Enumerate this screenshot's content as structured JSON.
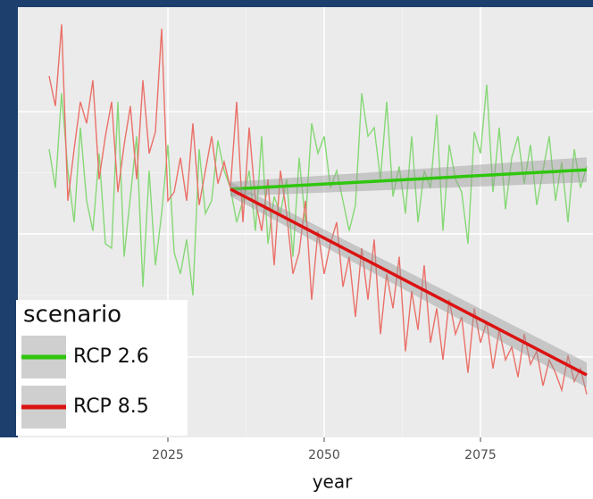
{
  "chart_data": {
    "type": "line",
    "x_label": "year",
    "legend_title": "scenario",
    "legend": "bottom-left",
    "grid": true,
    "x": [
      2006,
      2007,
      2008,
      2009,
      2010,
      2011,
      2012,
      2013,
      2014,
      2015,
      2016,
      2017,
      2018,
      2019,
      2020,
      2021,
      2022,
      2023,
      2024,
      2025,
      2026,
      2027,
      2028,
      2029,
      2030,
      2031,
      2032,
      2033,
      2034,
      2035,
      2036,
      2037,
      2038,
      2039,
      2040,
      2041,
      2042,
      2043,
      2044,
      2045,
      2046,
      2047,
      2048,
      2049,
      2050,
      2051,
      2052,
      2053,
      2054,
      2055,
      2056,
      2057,
      2058,
      2059,
      2060,
      2061,
      2062,
      2063,
      2064,
      2065,
      2066,
      2067,
      2068,
      2069,
      2070,
      2071,
      2072,
      2073,
      2074,
      2075,
      2076,
      2077,
      2078,
      2079,
      2080,
      2081,
      2082,
      2083,
      2084,
      2085,
      2086,
      2087,
      2088,
      2089,
      2090,
      2091,
      2092
    ],
    "xlim": [
      2001,
      2093
    ],
    "xticks": [
      2025,
      2050,
      2075
    ],
    "ylim": [
      0,
      100
    ],
    "yticks": [
      18.7,
      47.3,
      75.7
    ],
    "trend_x": [
      2035,
      2092
    ],
    "series": [
      {
        "name": "RCP 2.6",
        "color": "#86d876",
        "trend_color": "#2fc60e",
        "values": [
          67,
          58,
          80,
          62,
          50,
          72,
          55,
          48,
          66,
          45,
          44,
          78,
          42,
          56,
          70,
          35,
          62,
          40,
          52,
          68,
          43,
          38,
          46,
          33,
          67,
          52,
          55,
          69,
          62,
          58,
          50,
          55,
          62,
          48,
          70,
          45,
          56,
          52,
          60,
          42,
          65,
          50,
          73,
          66,
          70,
          58,
          62,
          55,
          48,
          54,
          80,
          70,
          72,
          60,
          78,
          56,
          63,
          52,
          70,
          50,
          62,
          58,
          75,
          48,
          68,
          60,
          57,
          45,
          71,
          66,
          82,
          57,
          72,
          53,
          65,
          70,
          59,
          68,
          54,
          62,
          70,
          55,
          64,
          50,
          67,
          58,
          63
        ],
        "trend": [
          57.7,
          62.2
        ]
      },
      {
        "name": "RCP 8.5",
        "color": "#ea7068",
        "trend_color": "#dc1212",
        "values": [
          84,
          77,
          96,
          55,
          67,
          78,
          73,
          83,
          60,
          70,
          78,
          57,
          68,
          77,
          60,
          83,
          66,
          71,
          95,
          55,
          57,
          65,
          55,
          73,
          54,
          62,
          70,
          59,
          64,
          58,
          78,
          50,
          72,
          55,
          48,
          60,
          40,
          62,
          52,
          38,
          43,
          55,
          32,
          48,
          38,
          45,
          50,
          35,
          42,
          28,
          44,
          32,
          46,
          24,
          38,
          30,
          42,
          20,
          34,
          25,
          40,
          22,
          30,
          18,
          32,
          24,
          28,
          15,
          30,
          22,
          27,
          16,
          25,
          18,
          21,
          14,
          24,
          17,
          20,
          12,
          18,
          15,
          11,
          19,
          13,
          16,
          10
        ],
        "trend": [
          57.7,
          14.5
        ]
      }
    ]
  }
}
